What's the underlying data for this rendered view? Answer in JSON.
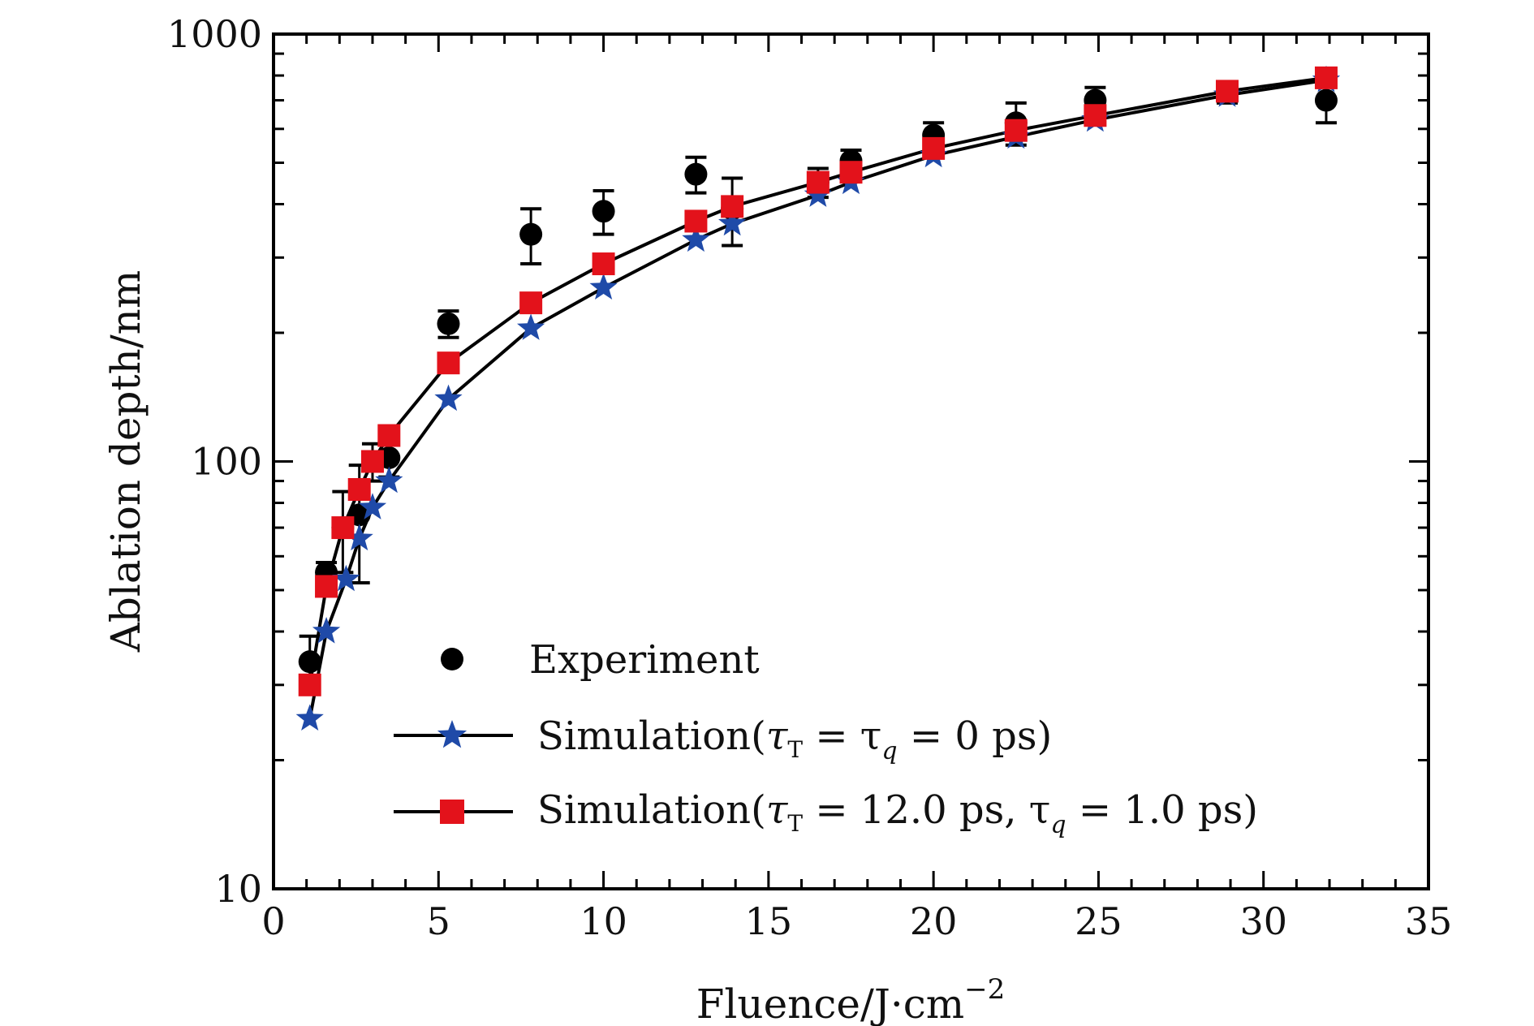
{
  "chart_data": {
    "type": "scatter",
    "title": "",
    "xlabel_main": "Fluence/J·cm",
    "xlabel_sup": "−2",
    "ylabel": "Ablation depth/nm",
    "xlim": [
      0,
      35
    ],
    "ylim": [
      10,
      1000
    ],
    "yscale": "log",
    "x_ticks": [
      0,
      5,
      10,
      15,
      20,
      25,
      30,
      35
    ],
    "x_tick_labels": [
      "0",
      "5",
      "10",
      "15",
      "20",
      "25",
      "30",
      "35"
    ],
    "y_ticks": [
      10,
      100,
      1000
    ],
    "y_tick_labels": [
      "10",
      "100",
      "1000"
    ],
    "legend_position": "lower-right",
    "series": [
      {
        "name": "Experiment",
        "legend_label": "Experiment",
        "marker": "circle",
        "color": "#000000",
        "line": false,
        "x": [
          1.1,
          1.6,
          2.1,
          2.6,
          3.0,
          3.5,
          5.3,
          7.8,
          10.0,
          12.8,
          13.9,
          16.5,
          17.5,
          20.0,
          22.5,
          24.9,
          28.9,
          31.9
        ],
        "y": [
          34,
          55,
          70,
          75,
          100,
          102,
          210,
          340,
          385,
          470,
          390,
          450,
          505,
          580,
          620,
          700,
          730,
          700
        ],
        "err": [
          5,
          3,
          15,
          23,
          10,
          10,
          15,
          50,
          45,
          45,
          70,
          35,
          30,
          40,
          70,
          50,
          40,
          80
        ]
      },
      {
        "name": "Simulation τT = τq = 0 ps",
        "legend_prefix": "Simulation(",
        "legend_parts": [
          "τ",
          "T",
          " = τ",
          "q",
          " = 0 ps)"
        ],
        "marker": "star",
        "color": "#1f4aa8",
        "line": true,
        "x": [
          1.1,
          1.6,
          2.2,
          2.6,
          3.0,
          3.5,
          5.3,
          7.8,
          10.0,
          12.8,
          13.9,
          16.5,
          17.5,
          20.0,
          22.5,
          24.9,
          28.9,
          31.9
        ],
        "y": [
          25,
          40,
          53,
          66,
          78,
          90,
          140,
          205,
          255,
          330,
          360,
          420,
          450,
          520,
          575,
          630,
          720,
          780
        ]
      },
      {
        "name": "Simulation τT = 12.0 ps, τq = 1.0 ps",
        "legend_prefix": "Simulation(",
        "legend_parts": [
          "τ",
          "T",
          " = 12.0 ps, τ",
          "q",
          " = 1.0 ps)"
        ],
        "marker": "square",
        "color": "#e3121b",
        "line": true,
        "x": [
          1.1,
          1.6,
          2.1,
          2.6,
          3.0,
          3.5,
          5.3,
          7.8,
          10.0,
          12.8,
          13.9,
          16.5,
          17.5,
          20.0,
          22.5,
          24.9,
          28.9,
          31.9
        ],
        "y": [
          30,
          51,
          70,
          86,
          100,
          115,
          170,
          235,
          290,
          365,
          395,
          450,
          475,
          540,
          595,
          645,
          735,
          790
        ]
      }
    ]
  }
}
